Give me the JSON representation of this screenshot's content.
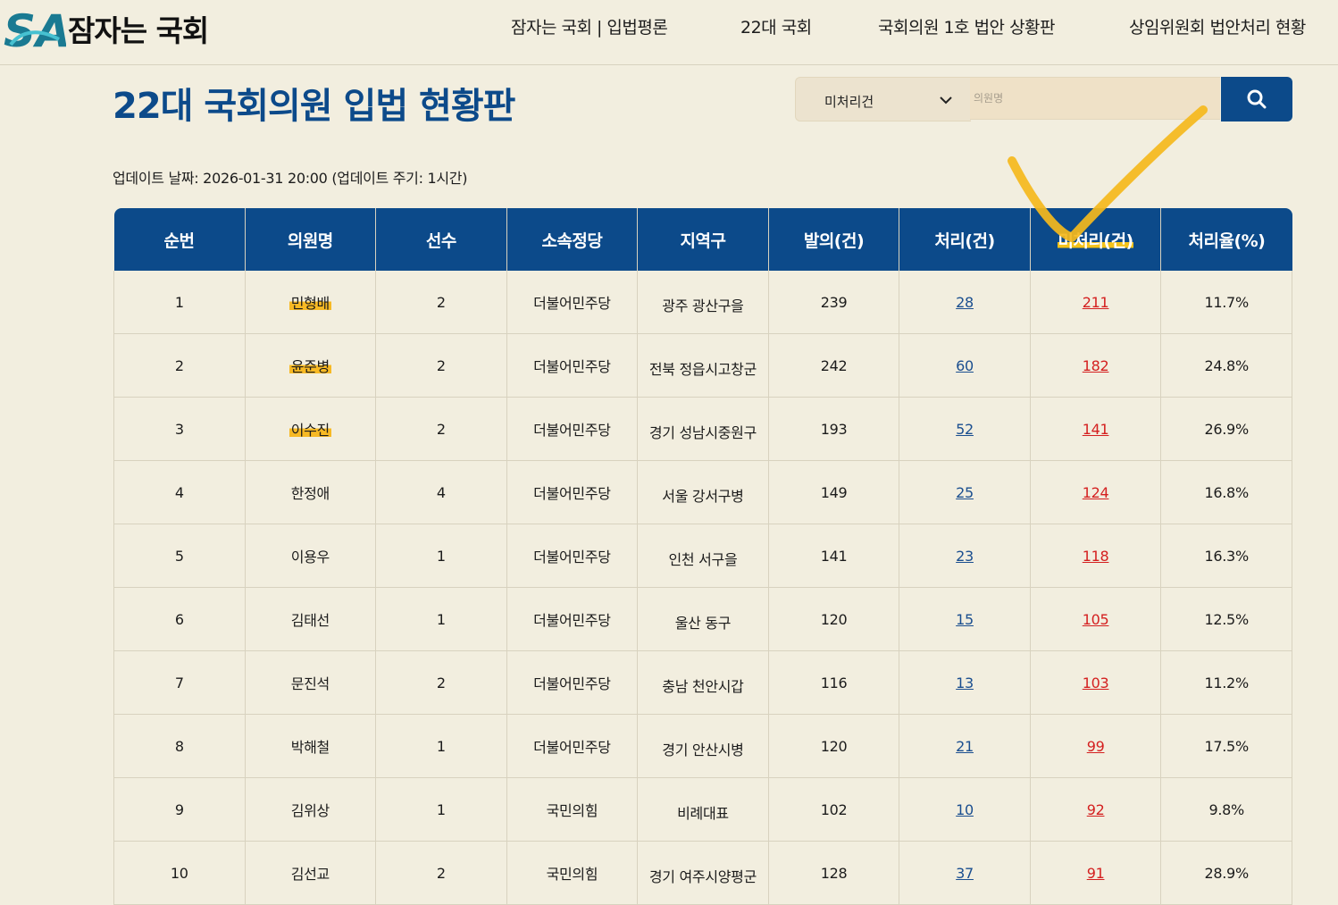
{
  "header": {
    "logo_text": "잠자는 국회",
    "logo_mark_letters": "SA",
    "nav": [
      {
        "label": "잠자는 국회 | 입법평론"
      },
      {
        "label": "22대 국회"
      },
      {
        "label": "국회의원 1호 법안 상황판"
      },
      {
        "label": "상임위원회 법안처리 현황"
      }
    ]
  },
  "main": {
    "title": "22대 국회의원 입법 현황판",
    "search": {
      "filter_selected": "미처리건",
      "placeholder": "의원명",
      "value": ""
    },
    "updated": "업데이트 날짜: 2026-01-31 20:00 (업데이트 주기: 1시간)"
  },
  "table": {
    "columns": [
      "순번",
      "의원명",
      "선수",
      "소속정당",
      "지역구",
      "발의(건)",
      "처리(건)",
      "미처리(건)",
      "처리율(%)"
    ],
    "rows": [
      {
        "rank": "1",
        "name": "민형배",
        "terms": "2",
        "party": "더불어민주당",
        "district": "광주 광산구을",
        "proposed": "239",
        "processed": "28",
        "unprocessed": "211",
        "rate": "11.7%",
        "highlight": true
      },
      {
        "rank": "2",
        "name": "윤준병",
        "terms": "2",
        "party": "더불어민주당",
        "district": "전북 정읍시고창군",
        "proposed": "242",
        "processed": "60",
        "unprocessed": "182",
        "rate": "24.8%",
        "highlight": true
      },
      {
        "rank": "3",
        "name": "이수진",
        "terms": "2",
        "party": "더불어민주당",
        "district": "경기 성남시중원구",
        "proposed": "193",
        "processed": "52",
        "unprocessed": "141",
        "rate": "26.9%",
        "highlight": true
      },
      {
        "rank": "4",
        "name": "한정애",
        "terms": "4",
        "party": "더불어민주당",
        "district": "서울 강서구병",
        "proposed": "149",
        "processed": "25",
        "unprocessed": "124",
        "rate": "16.8%",
        "highlight": false
      },
      {
        "rank": "5",
        "name": "이용우",
        "terms": "1",
        "party": "더불어민주당",
        "district": "인천 서구을",
        "proposed": "141",
        "processed": "23",
        "unprocessed": "118",
        "rate": "16.3%",
        "highlight": false
      },
      {
        "rank": "6",
        "name": "김태선",
        "terms": "1",
        "party": "더불어민주당",
        "district": "울산 동구",
        "proposed": "120",
        "processed": "15",
        "unprocessed": "105",
        "rate": "12.5%",
        "highlight": false
      },
      {
        "rank": "7",
        "name": "문진석",
        "terms": "2",
        "party": "더불어민주당",
        "district": "충남 천안시갑",
        "proposed": "116",
        "processed": "13",
        "unprocessed": "103",
        "rate": "11.2%",
        "highlight": false
      },
      {
        "rank": "8",
        "name": "박해철",
        "terms": "1",
        "party": "더불어민주당",
        "district": "경기 안산시병",
        "proposed": "120",
        "processed": "21",
        "unprocessed": "99",
        "rate": "17.5%",
        "highlight": false
      },
      {
        "rank": "9",
        "name": "김위상",
        "terms": "1",
        "party": "국민의힘",
        "district": "비례대표",
        "proposed": "102",
        "processed": "10",
        "unprocessed": "92",
        "rate": "9.8%",
        "highlight": false
      },
      {
        "rank": "10",
        "name": "김선교",
        "terms": "2",
        "party": "국민의힘",
        "district": "경기 여주시양평군",
        "proposed": "128",
        "processed": "37",
        "unprocessed": "91",
        "rate": "28.9%",
        "highlight": false
      }
    ]
  },
  "colors": {
    "accent_blue": "#0c4a8a",
    "unprocessed_red": "#d41f1f",
    "highlight_yellow": "#f7b924",
    "background": "#f2eedf"
  },
  "icons": {
    "search_button": "search-icon",
    "filter": "chevron-down-icon",
    "annotation": "checkmark-annotation"
  }
}
